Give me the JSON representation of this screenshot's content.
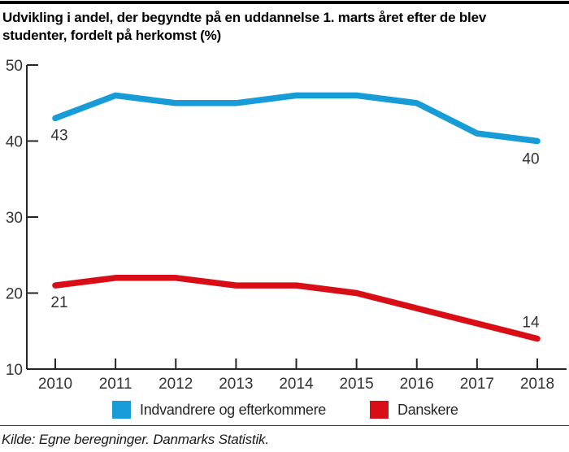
{
  "page": {
    "title": "Udvikling i andel, der begyndte på en uddannelse 1. marts året efter de blev\nstudenter, fordelt på herkomst (%)",
    "source": "Kilde: Egne beregninger. Danmarks Statistik."
  },
  "colors": {
    "blue": "#189CD8",
    "red": "#D90D16",
    "axis": "#262626",
    "tick_label": "#333333",
    "topbar": "#000000"
  },
  "chart_data": {
    "type": "line",
    "title": "Udvikling i andel, der begyndte på en uddannelse 1. marts året efter de blev studenter, fordelt på herkomst (%)",
    "xlabel": "",
    "ylabel": "",
    "x": [
      2010,
      2011,
      2012,
      2013,
      2014,
      2015,
      2016,
      2017,
      2018
    ],
    "series": [
      {
        "name": "Indvandrere og efterkommere",
        "color_key": "blue",
        "values": [
          43,
          46,
          45,
          45,
          46,
          46,
          45,
          41,
          40
        ]
      },
      {
        "name": "Danskere",
        "color_key": "red",
        "values": [
          21,
          22,
          22,
          21,
          21,
          20,
          18,
          16,
          14
        ]
      }
    ],
    "ylim": [
      10,
      50
    ],
    "yticks": [
      10,
      20,
      30,
      40,
      50
    ],
    "grid": false,
    "legend_position": "bottom",
    "point_labels": [
      {
        "series": 0,
        "index": 0,
        "text": "43",
        "placement": "below-start"
      },
      {
        "series": 0,
        "index": 8,
        "text": "40",
        "placement": "below-end"
      },
      {
        "series": 1,
        "index": 0,
        "text": "21",
        "placement": "below-start"
      },
      {
        "series": 1,
        "index": 8,
        "text": "14",
        "placement": "above-end"
      }
    ]
  }
}
